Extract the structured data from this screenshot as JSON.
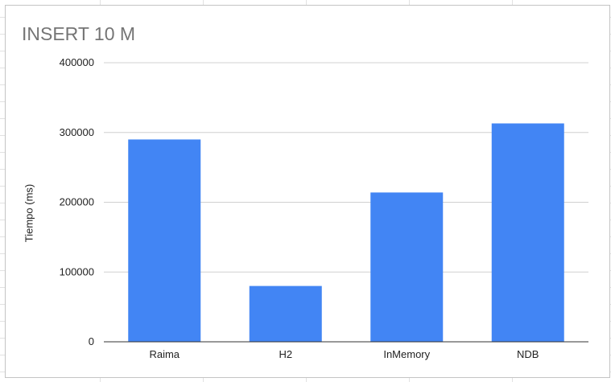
{
  "chart_data": {
    "type": "bar",
    "title": "INSERT 10 M",
    "xlabel": "",
    "ylabel": "Tiempo (ms)",
    "categories": [
      "Raima",
      "H2",
      "InMemory",
      "NDB"
    ],
    "values": [
      290000,
      80000,
      214000,
      313000
    ],
    "ylim": [
      0,
      400000
    ],
    "yticks": [
      "0",
      "100000",
      "200000",
      "300000",
      "400000"
    ],
    "grid": true,
    "legend": "none",
    "bar_color": "#4285f4"
  }
}
